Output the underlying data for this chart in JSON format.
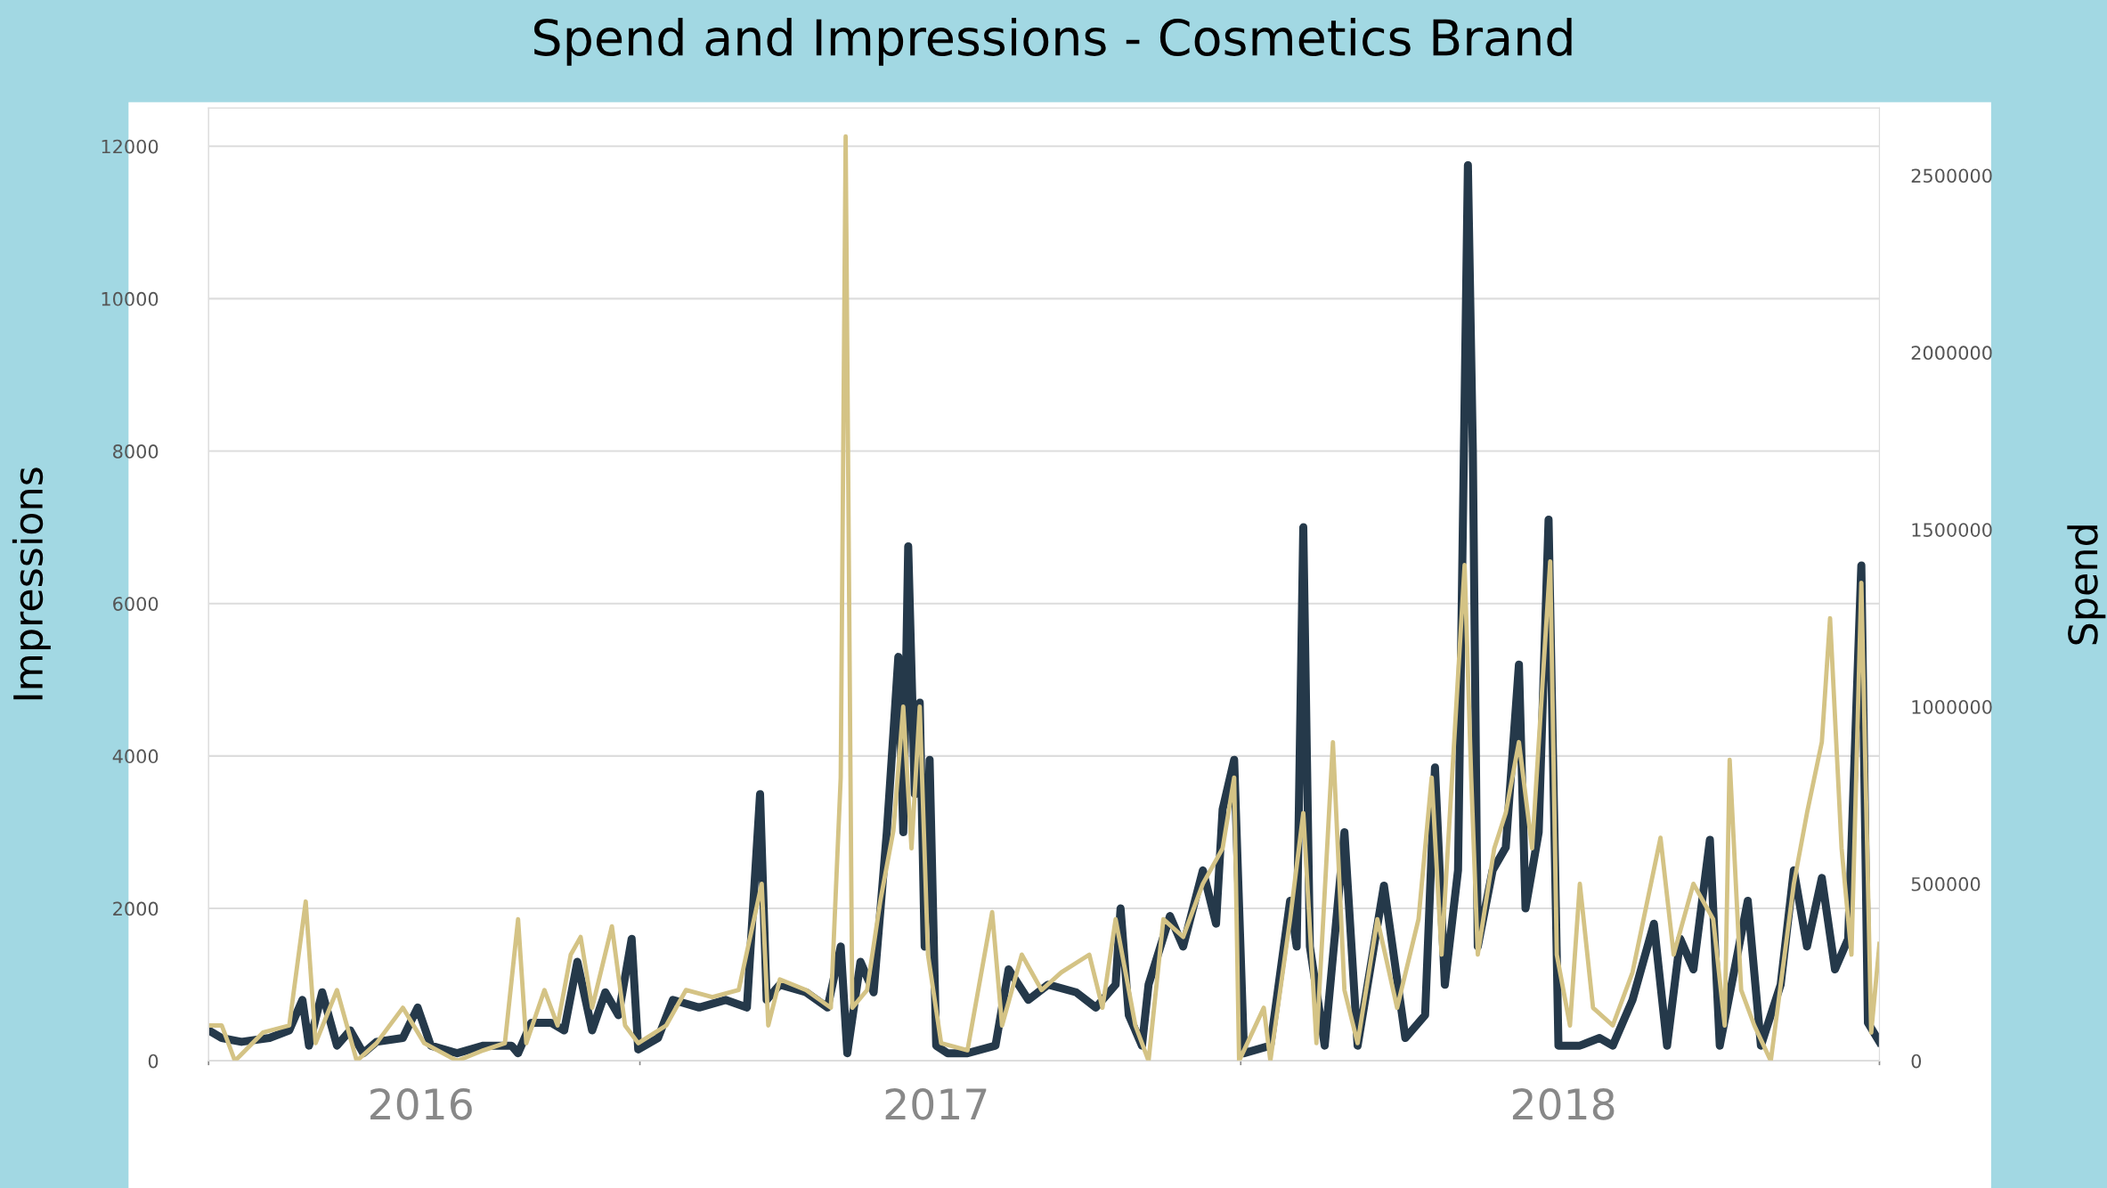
{
  "chart_data": {
    "type": "line",
    "title": "Spend and Impressions - Cosmetics Brand",
    "ylabel": "Impressions",
    "y2label": "Spend",
    "grid": "y",
    "line_style": "solid",
    "xlim": [
      "2016-04-14",
      "2019-01-24"
    ],
    "xticks": [
      {
        "value": "2016-04-14",
        "label": null
      },
      {
        "value": "2016-08-21",
        "label": "2016"
      },
      {
        "value": "2017-01-01",
        "label": null
      },
      {
        "value": "2017-06-30",
        "label": "2017"
      },
      {
        "value": "2018-01-01",
        "label": null
      },
      {
        "value": "2018-07-16",
        "label": "2018"
      },
      {
        "value": "2019-01-24",
        "label": null
      }
    ],
    "ylim": [
      0,
      12500
    ],
    "yticks": [
      0,
      2000,
      4000,
      6000,
      8000,
      10000,
      12000
    ],
    "y2lim": [
      0,
      2690000
    ],
    "y2ticks": [
      0,
      500000,
      1000000,
      1500000,
      2000000,
      2500000
    ],
    "series": [
      {
        "color": "#25394a",
        "x": [
          "2016-04-14",
          "2016-04-22",
          "2016-05-04",
          "2016-05-21",
          "2016-06-02",
          "2016-06-10",
          "2016-06-14",
          "2016-06-22",
          "2016-07-01",
          "2016-07-09",
          "2016-07-17",
          "2016-07-25",
          "2016-08-10",
          "2016-08-19",
          "2016-08-27",
          "2016-09-12",
          "2016-09-28",
          "2016-10-15",
          "2016-10-19",
          "2016-10-27",
          "2016-11-08",
          "2016-11-16",
          "2016-11-24",
          "2016-12-03",
          "2016-12-11",
          "2016-12-19",
          "2016-12-27",
          "2016-12-31",
          "2017-01-12",
          "2017-01-21",
          "2017-02-06",
          "2017-02-22",
          "2017-03-07",
          "2017-03-15",
          "2017-03-19",
          "2017-03-27",
          "2017-04-12",
          "2017-04-25",
          "2017-05-03",
          "2017-05-07",
          "2017-05-15",
          "2017-05-23",
          "2017-05-31",
          "2017-06-04",
          "2017-06-07",
          "2017-06-10",
          "2017-06-13",
          "2017-06-17",
          "2017-06-20",
          "2017-06-23",
          "2017-06-26",
          "2017-06-30",
          "2017-07-07",
          "2017-07-19",
          "2017-08-05",
          "2017-08-13",
          "2017-08-25",
          "2017-09-06",
          "2017-09-23",
          "2017-10-05",
          "2017-10-17",
          "2017-10-20",
          "2017-10-25",
          "2017-11-02",
          "2017-11-06",
          "2017-11-19",
          "2017-11-27",
          "2017-12-09",
          "2017-12-17",
          "2017-12-21",
          "2017-12-28",
          "2018-01-03",
          "2018-01-19",
          "2018-01-31",
          "2018-02-04",
          "2018-02-08",
          "2018-02-12",
          "2018-02-21",
          "2018-03-05",
          "2018-03-13",
          "2018-03-29",
          "2018-04-11",
          "2018-04-23",
          "2018-04-29",
          "2018-05-05",
          "2018-05-13",
          "2018-05-19",
          "2018-05-22",
          "2018-05-25",
          "2018-06-03",
          "2018-06-11",
          "2018-06-19",
          "2018-06-23",
          "2018-07-01",
          "2018-07-07",
          "2018-07-13",
          "2018-07-26",
          "2018-08-07",
          "2018-08-15",
          "2018-08-27",
          "2018-09-09",
          "2018-09-17",
          "2018-09-25",
          "2018-10-03",
          "2018-10-13",
          "2018-10-19",
          "2018-11-05",
          "2018-11-13",
          "2018-11-25",
          "2018-12-03",
          "2018-12-11",
          "2018-12-20",
          "2018-12-28",
          "2019-01-05",
          "2019-01-13",
          "2019-01-17",
          "2019-01-24"
        ],
        "values": [
          400,
          300,
          250,
          300,
          400,
          800,
          200,
          900,
          200,
          400,
          100,
          250,
          300,
          700,
          200,
          100,
          200,
          200,
          100,
          500,
          500,
          400,
          1300,
          400,
          900,
          600,
          1600,
          150,
          300,
          800,
          700,
          800,
          700,
          3500,
          800,
          1000,
          900,
          700,
          1500,
          100,
          1300,
          900,
          3000,
          4300,
          5300,
          3000,
          6750,
          3500,
          4700,
          1500,
          3950,
          200,
          100,
          100,
          200,
          1200,
          800,
          1000,
          900,
          700,
          1000,
          2000,
          600,
          200,
          1000,
          1900,
          1500,
          2500,
          1800,
          3300,
          3950,
          100,
          200,
          2100,
          1500,
          7000,
          1500,
          200,
          3000,
          200,
          2300,
          300,
          600,
          3850,
          1000,
          2500,
          11750,
          8000,
          1500,
          2500,
          2800,
          5200,
          2000,
          3000,
          7100,
          200,
          200,
          300,
          200,
          800,
          1800,
          200,
          1600,
          1200,
          2900,
          200,
          2100,
          200,
          1000,
          2500,
          1500,
          2400,
          1200,
          1600,
          6500,
          500,
          250
        ]
      },
      {
        "color": "#d4c385",
        "axis": "y2",
        "x": [
          "2016-04-14",
          "2016-04-22",
          "2016-04-30",
          "2016-05-17",
          "2016-06-02",
          "2016-06-12",
          "2016-06-18",
          "2016-07-01",
          "2016-07-13",
          "2016-07-25",
          "2016-08-10",
          "2016-08-23",
          "2016-09-12",
          "2016-09-28",
          "2016-10-11",
          "2016-10-19",
          "2016-10-24",
          "2016-11-04",
          "2016-11-12",
          "2016-11-20",
          "2016-11-26",
          "2016-12-03",
          "2016-12-15",
          "2016-12-23",
          "2016-12-31",
          "2017-01-17",
          "2017-01-29",
          "2017-02-14",
          "2017-03-02",
          "2017-03-16",
          "2017-03-20",
          "2017-03-27",
          "2017-04-12",
          "2017-04-27",
          "2017-05-03",
          "2017-05-06",
          "2017-05-10",
          "2017-05-19",
          "2017-05-27",
          "2017-06-04",
          "2017-06-10",
          "2017-06-15",
          "2017-06-20",
          "2017-06-25",
          "2017-07-03",
          "2017-07-19",
          "2017-08-03",
          "2017-08-09",
          "2017-08-21",
          "2017-09-02",
          "2017-09-14",
          "2017-10-01",
          "2017-10-09",
          "2017-10-17",
          "2017-10-29",
          "2017-11-06",
          "2017-11-15",
          "2017-11-27",
          "2017-12-09",
          "2017-12-21",
          "2017-12-28",
          "2017-12-31",
          "2018-01-15",
          "2018-01-19",
          "2018-01-31",
          "2018-02-08",
          "2018-02-16",
          "2018-02-26",
          "2018-03-05",
          "2018-03-13",
          "2018-03-25",
          "2018-04-06",
          "2018-04-19",
          "2018-04-27",
          "2018-05-03",
          "2018-05-17",
          "2018-05-21",
          "2018-05-25",
          "2018-06-04",
          "2018-06-11",
          "2018-06-19",
          "2018-06-27",
          "2018-07-08",
          "2018-07-12",
          "2018-07-20",
          "2018-07-26",
          "2018-08-03",
          "2018-08-15",
          "2018-08-27",
          "2018-09-13",
          "2018-09-21",
          "2018-10-03",
          "2018-10-15",
          "2018-10-22",
          "2018-10-25",
          "2018-11-01",
          "2018-11-09",
          "2018-11-19",
          "2018-12-03",
          "2018-12-11",
          "2018-12-20",
          "2018-12-25",
          "2019-01-01",
          "2019-01-07",
          "2019-01-13",
          "2019-01-19",
          "2019-01-24"
        ],
        "values": [
          100000,
          100000,
          0,
          80000,
          100000,
          450000,
          50000,
          200000,
          0,
          50000,
          150000,
          50000,
          0,
          30000,
          50000,
          400000,
          50000,
          200000,
          100000,
          300000,
          350000,
          150000,
          380000,
          100000,
          50000,
          100000,
          200000,
          180000,
          200000,
          500000,
          100000,
          230000,
          200000,
          150000,
          800000,
          2610000,
          150000,
          200000,
          450000,
          650000,
          1000000,
          600000,
          1000000,
          300000,
          50000,
          30000,
          420000,
          100000,
          300000,
          200000,
          250000,
          300000,
          150000,
          400000,
          100000,
          0,
          400000,
          350000,
          500000,
          600000,
          800000,
          0,
          150000,
          0,
          400000,
          700000,
          50000,
          900000,
          200000,
          50000,
          400000,
          150000,
          400000,
          800000,
          300000,
          1400000,
          800000,
          300000,
          600000,
          700000,
          900000,
          600000,
          1410000,
          300000,
          100000,
          500000,
          150000,
          100000,
          250000,
          630000,
          300000,
          500000,
          400000,
          100000,
          850000,
          200000,
          100000,
          0,
          500000,
          700000,
          900000,
          1250000,
          600000,
          300000,
          1350000,
          80000,
          330000
        ]
      }
    ]
  }
}
